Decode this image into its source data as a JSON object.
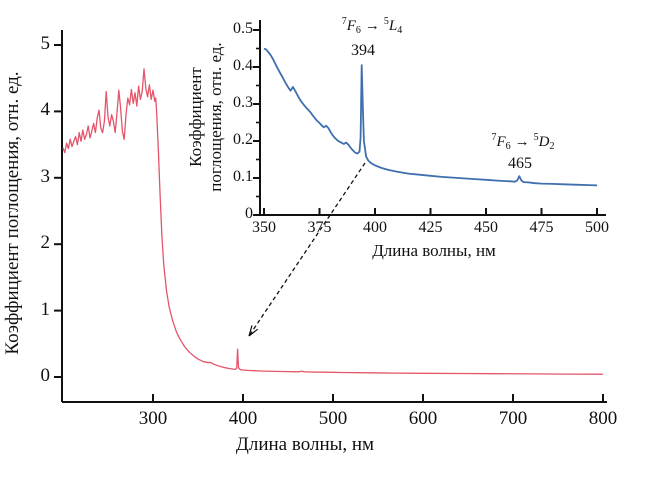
{
  "chart_data": [
    {
      "id": "main-spectrum",
      "type": "line",
      "title": "",
      "xlabel": "Длина волны, нм",
      "ylabel": "Коэффициент поглощения, отн. ед.",
      "xlim": [
        200,
        800
      ],
      "ylim": [
        0,
        5
      ],
      "xticks": [
        300,
        400,
        500,
        600,
        700,
        800
      ],
      "yticks": [
        0,
        1,
        2,
        3,
        4,
        5
      ],
      "grid": false,
      "legend": "none",
      "line_color": "#e4556a",
      "series": [
        {
          "name": "absorption-spectrum-full",
          "x": [
            200,
            202,
            204,
            206,
            208,
            210,
            212,
            214,
            216,
            218,
            220,
            222,
            224,
            226,
            228,
            230,
            232,
            234,
            236,
            238,
            240,
            242,
            244,
            246,
            248,
            250,
            252,
            254,
            256,
            258,
            260,
            262,
            264,
            266,
            268,
            270,
            272,
            274,
            276,
            278,
            280,
            282,
            284,
            286,
            288,
            290,
            292,
            294,
            296,
            298,
            300,
            302,
            303,
            304,
            306,
            308,
            310,
            312,
            315,
            318,
            322,
            326,
            330,
            335,
            340,
            345,
            350,
            356,
            362,
            364,
            368,
            372,
            376,
            380,
            384,
            388,
            391,
            393,
            394,
            395,
            397,
            400,
            405,
            412,
            420,
            435,
            450,
            462,
            465,
            468,
            475,
            490,
            510,
            540,
            570,
            600,
            640,
            680,
            720,
            760,
            800
          ],
          "y": [
            3.45,
            3.38,
            3.52,
            3.44,
            3.58,
            3.47,
            3.55,
            3.62,
            3.5,
            3.68,
            3.55,
            3.72,
            3.58,
            3.65,
            3.78,
            3.6,
            3.7,
            3.82,
            3.68,
            3.9,
            4.02,
            3.75,
            3.68,
            3.85,
            4.3,
            3.92,
            3.78,
            3.95,
            3.85,
            3.68,
            3.98,
            4.32,
            4.05,
            3.7,
            3.58,
            3.95,
            4.2,
            4.1,
            4.33,
            4.12,
            4.28,
            4.08,
            4.38,
            4.18,
            4.3,
            4.64,
            4.35,
            4.22,
            4.4,
            4.18,
            4.32,
            4.15,
            4.2,
            4.0,
            3.4,
            2.7,
            2.1,
            1.68,
            1.3,
            1.05,
            0.84,
            0.68,
            0.57,
            0.46,
            0.38,
            0.32,
            0.27,
            0.23,
            0.215,
            0.22,
            0.19,
            0.17,
            0.155,
            0.14,
            0.13,
            0.12,
            0.115,
            0.13,
            0.42,
            0.14,
            0.11,
            0.105,
            0.1,
            0.095,
            0.09,
            0.085,
            0.082,
            0.079,
            0.088,
            0.078,
            0.075,
            0.072,
            0.068,
            0.063,
            0.059,
            0.056,
            0.052,
            0.049,
            0.046,
            0.044,
            0.042
          ]
        }
      ]
    },
    {
      "id": "inset-spectrum",
      "type": "line",
      "title": "",
      "xlabel": "Длина волны, нм",
      "ylabel": "Коэффициент поглощения, отн. ед.",
      "ylabel_lines": [
        "Коэффициент",
        "поглощения, отн. ед."
      ],
      "xlim": [
        350,
        500
      ],
      "ylim": [
        0,
        0.5
      ],
      "xticks": [
        350,
        375,
        400,
        425,
        450,
        475,
        500
      ],
      "yticks": [
        0,
        0.1,
        0.2,
        0.3,
        0.4,
        0.5
      ],
      "grid": false,
      "legend": "none",
      "line_color": "#3f6fad",
      "series": [
        {
          "name": "absorption-spectrum-uv-blue-region",
          "x": [
            350,
            351,
            352,
            353,
            354,
            355,
            356,
            357,
            358,
            359,
            360,
            361,
            362,
            363,
            364,
            365,
            366,
            367,
            368,
            369,
            370,
            371,
            372,
            373,
            374,
            375,
            376,
            377,
            378,
            379,
            380,
            381,
            382,
            383,
            384,
            385,
            386,
            387,
            388,
            389,
            390,
            391,
            392,
            393,
            393.5,
            394,
            394.5,
            395,
            396,
            397,
            398,
            400,
            403,
            406,
            410,
            415,
            420,
            425,
            430,
            435,
            440,
            445,
            450,
            455,
            458,
            461,
            463,
            464,
            465,
            466,
            467,
            469,
            472,
            475,
            480,
            485,
            490,
            495,
            500
          ],
          "y": [
            0.45,
            0.447,
            0.44,
            0.432,
            0.422,
            0.41,
            0.398,
            0.387,
            0.376,
            0.365,
            0.354,
            0.344,
            0.336,
            0.346,
            0.336,
            0.325,
            0.314,
            0.305,
            0.297,
            0.29,
            0.284,
            0.277,
            0.269,
            0.261,
            0.254,
            0.249,
            0.242,
            0.237,
            0.241,
            0.235,
            0.224,
            0.215,
            0.208,
            0.202,
            0.198,
            0.195,
            0.192,
            0.196,
            0.19,
            0.182,
            0.175,
            0.169,
            0.166,
            0.171,
            0.21,
            0.405,
            0.295,
            0.2,
            0.158,
            0.147,
            0.141,
            0.134,
            0.127,
            0.122,
            0.117,
            0.112,
            0.109,
            0.106,
            0.103,
            0.101,
            0.099,
            0.097,
            0.095,
            0.093,
            0.092,
            0.091,
            0.09,
            0.093,
            0.105,
            0.093,
            0.089,
            0.088,
            0.086,
            0.085,
            0.084,
            0.083,
            0.082,
            0.081,
            0.08
          ]
        }
      ],
      "annotations": [
        {
          "from_sup": "7",
          "from_letter": "F",
          "from_sub": "6",
          "arrow": "→",
          "to_sup": "5",
          "to_letter": "L",
          "to_sub": "4",
          "peak_nm": "394",
          "peak_value": 0.405
        },
        {
          "from_sup": "7",
          "from_letter": "F",
          "from_sub": "6",
          "arrow": "→",
          "to_sup": "5",
          "to_letter": "D",
          "to_sub": "2",
          "peak_nm": "465",
          "peak_value": 0.105
        }
      ]
    }
  ]
}
